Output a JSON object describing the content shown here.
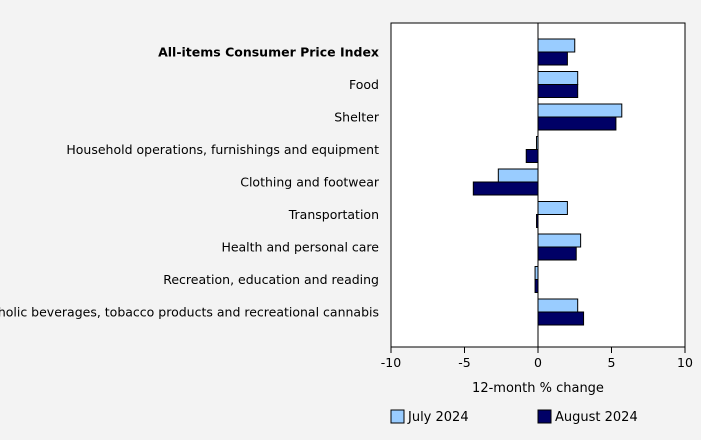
{
  "chart_data": {
    "type": "bar",
    "orientation": "horizontal",
    "categories": [
      "All-items Consumer Price Index",
      "Food",
      "Shelter",
      "Household operations, furnishings and equipment",
      "Clothing and footwear",
      "Transportation",
      "Health and personal care",
      "Recreation, education and reading",
      "Alcoholic beverages, tobacco products and recreational cannabis"
    ],
    "bold_categories": [
      "All-items Consumer Price Index"
    ],
    "series": [
      {
        "name": "July 2024",
        "color": "#99ccff",
        "values": [
          2.5,
          2.7,
          5.7,
          -0.1,
          -2.7,
          2.0,
          2.9,
          -0.2,
          2.7
        ]
      },
      {
        "name": "August 2024",
        "color": "#000066",
        "values": [
          2.0,
          2.7,
          5.3,
          -0.8,
          -4.4,
          -0.1,
          2.6,
          -0.2,
          3.1
        ]
      }
    ],
    "xlabel": "12-month % change",
    "xlim": [
      -10,
      10
    ],
    "xticks": [
      -10,
      -5,
      0,
      5,
      10
    ],
    "tick_labels": [
      "-10",
      "-5",
      "0",
      "5",
      "10"
    ],
    "legend_position": "bottom",
    "grid": false
  }
}
